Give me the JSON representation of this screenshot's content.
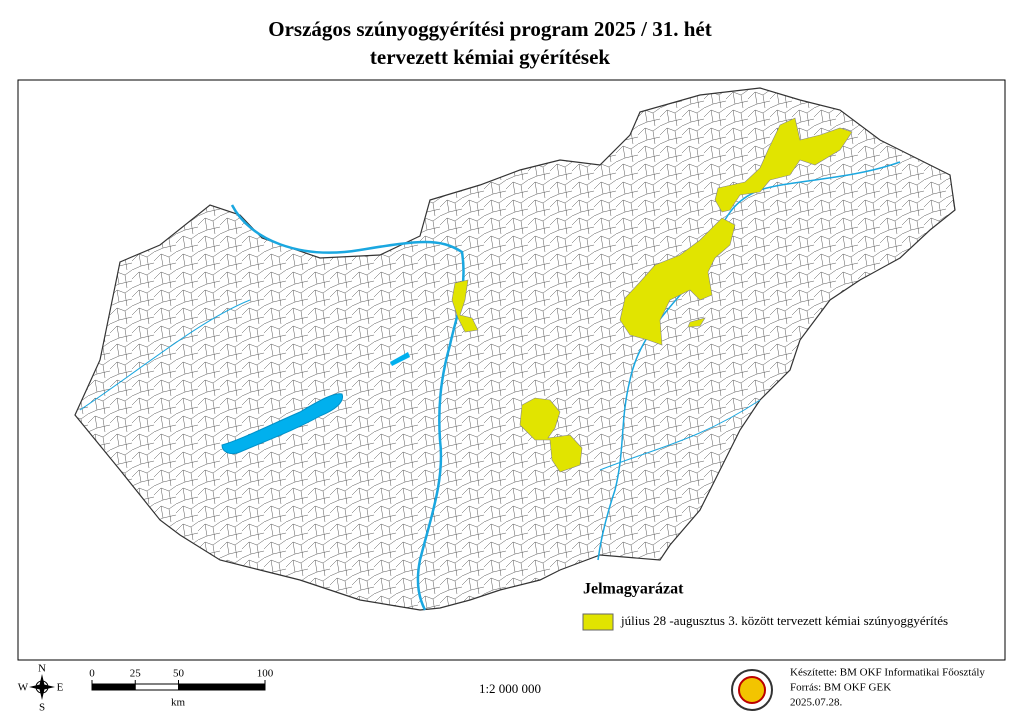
{
  "header": {
    "title_line1": "Országos szúnyoggyérítési program 2025 / 31. hét",
    "title_line2": "tervezett kémiai gyérítések"
  },
  "legend": {
    "title": "Jelmagyarázat",
    "items": [
      {
        "label": "július 28 -augusztus 3. között tervezett kémiai szúnyoggyérítés",
        "color": "#e1e400"
      }
    ]
  },
  "scale_bar": {
    "ticks": [
      0,
      25,
      50,
      100
    ],
    "unit": "km",
    "ratio": "1:2 000 000"
  },
  "compass": {
    "n": "N",
    "e": "E",
    "s": "S",
    "w": "W"
  },
  "credits": [
    "Készítette: BM OKF Informatikai Főosztály",
    "Forrás: BM OKF GEK",
    "2025.07.28."
  ]
}
